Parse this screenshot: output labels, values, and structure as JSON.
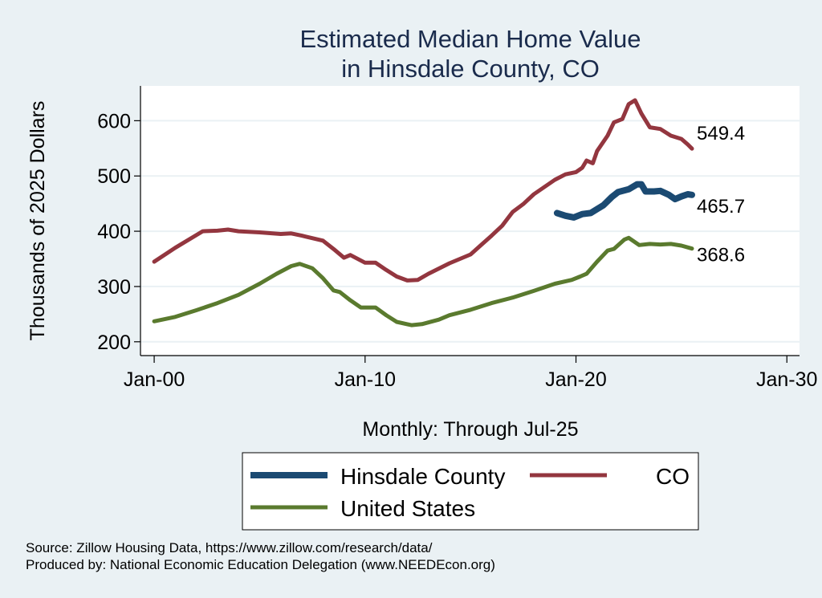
{
  "chart_data": {
    "type": "line",
    "title": [
      "Estimated Median Home Value",
      "in Hinsdale County, CO"
    ],
    "xlabel": "Monthly: Through Jul-25",
    "ylabel": "Thousands of 2025 Dollars",
    "xlim": [
      1999.35,
      2030.6
    ],
    "ylim": [
      175,
      663
    ],
    "x_ticks": [
      {
        "value": 2000,
        "label": "Jan-00"
      },
      {
        "value": 2010,
        "label": "Jan-10"
      },
      {
        "value": 2020,
        "label": "Jan-20"
      },
      {
        "value": 2030,
        "label": "Jan-30"
      }
    ],
    "y_ticks": [
      {
        "value": 200,
        "label": "200"
      },
      {
        "value": 300,
        "label": "300"
      },
      {
        "value": 400,
        "label": "400"
      },
      {
        "value": 500,
        "label": "500"
      },
      {
        "value": 600,
        "label": "600"
      }
    ],
    "grid": true,
    "legend_position": "bottom",
    "series": [
      {
        "name": "CO",
        "color": "#93363f",
        "end_label": "549.4",
        "x": [
          2000.0,
          2001.0,
          2002.0,
          2002.3,
          2003.0,
          2003.5,
          2004.0,
          2005.0,
          2006.0,
          2006.5,
          2007.0,
          2008.0,
          2008.5,
          2009.0,
          2009.3,
          2010.0,
          2010.5,
          2011.0,
          2011.5,
          2012.0,
          2012.5,
          2013.0,
          2014.0,
          2015.0,
          2015.5,
          2016.0,
          2016.5,
          2017.0,
          2017.5,
          2018.0,
          2018.5,
          2019.0,
          2019.5,
          2020.0,
          2020.3,
          2020.5,
          2020.8,
          2021.0,
          2021.5,
          2021.8,
          2022.2,
          2022.5,
          2022.8,
          2023.1,
          2023.5,
          2024.0,
          2024.5,
          2025.0,
          2025.3,
          2025.5
        ],
        "y": [
          345,
          370,
          393,
          400,
          401,
          403,
          400,
          398,
          395,
          396,
          392,
          383,
          368,
          352,
          357,
          343,
          343,
          330,
          318,
          311,
          312,
          323,
          342,
          358,
          375,
          392,
          410,
          435,
          449,
          467,
          480,
          493,
          503,
          507,
          515,
          528,
          523,
          545,
          573,
          597,
          603,
          630,
          637,
          613,
          588,
          585,
          573,
          567,
          557,
          549.4
        ]
      },
      {
        "name": "United States",
        "color": "#5a7a2e",
        "end_label": "368.6",
        "x": [
          2000.0,
          2001.0,
          2002.0,
          2003.0,
          2004.0,
          2005.0,
          2005.8,
          2006.5,
          2006.9,
          2007.5,
          2008.0,
          2008.5,
          2008.8,
          2009.3,
          2009.8,
          2010.5,
          2011.0,
          2011.5,
          2012.2,
          2012.7,
          2013.5,
          2014.0,
          2015.0,
          2016.0,
          2017.0,
          2018.0,
          2019.0,
          2019.8,
          2020.2,
          2020.5,
          2021.0,
          2021.5,
          2021.8,
          2022.3,
          2022.5,
          2023.0,
          2023.5,
          2024.0,
          2024.5,
          2025.0,
          2025.5
        ],
        "y": [
          237,
          245,
          257,
          270,
          285,
          305,
          323,
          337,
          341,
          333,
          315,
          293,
          290,
          275,
          262,
          262,
          248,
          236,
          230,
          232,
          240,
          248,
          258,
          270,
          280,
          292,
          305,
          312,
          318,
          323,
          345,
          365,
          368,
          385,
          388,
          375,
          377,
          376,
          377,
          374,
          368.6
        ]
      },
      {
        "name": "Hinsdale County",
        "color": "#1b4a72",
        "end_label": "465.7",
        "x": [
          2019.1,
          2019.5,
          2019.9,
          2020.3,
          2020.7,
          2021.0,
          2021.3,
          2021.7,
          2022.0,
          2022.5,
          2022.9,
          2023.1,
          2023.3,
          2023.7,
          2024.0,
          2024.4,
          2024.7,
          2025.0,
          2025.3,
          2025.5
        ],
        "y": [
          433,
          428,
          425,
          431,
          433,
          440,
          447,
          462,
          471,
          476,
          485,
          485,
          472,
          472,
          473,
          466,
          458,
          463,
          467,
          465.7
        ]
      }
    ],
    "legend": [
      {
        "label": "Hinsdale County",
        "color": "#1b4a72"
      },
      {
        "label": "CO",
        "color": "#93363f"
      },
      {
        "label": "United States",
        "color": "#5a7a2e"
      }
    ]
  },
  "notes": {
    "source": "Source: Zillow Housing Data, https://www.zillow.com/research/data/",
    "produced_by": "Produced by: National Economic Education Delegation (www.NEEDEcon.org)"
  }
}
